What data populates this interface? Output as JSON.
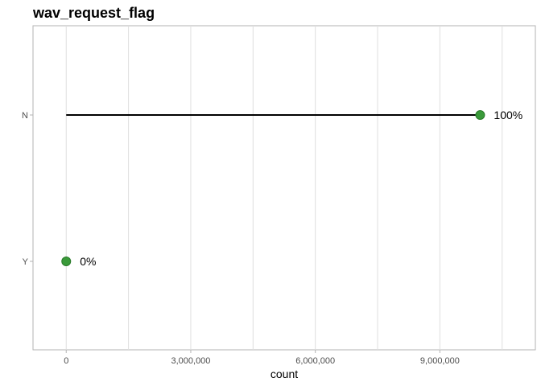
{
  "chart_data": {
    "type": "lollipop",
    "title": "wav_request_flag",
    "xlabel": "count",
    "ylabel": "",
    "categories": [
      "N",
      "Y"
    ],
    "values": [
      9970000,
      0
    ],
    "labels": [
      "100%",
      "0%"
    ],
    "xlim": [
      -800000,
      11300000
    ],
    "x_ticks": [
      0,
      3000000,
      6000000,
      9000000
    ],
    "x_tick_labels": [
      "0",
      "3,000,000",
      "6,000,000",
      "9,000,000"
    ],
    "x_minor_ticks": [
      1500000,
      4500000,
      7500000,
      10500000
    ],
    "grid": true,
    "point_color": "#3a9a3a",
    "point_outline": "#2a7a2a",
    "segment_color": "#000000",
    "panel_border": "#b3b3b3",
    "grid_color": "#dedede"
  }
}
